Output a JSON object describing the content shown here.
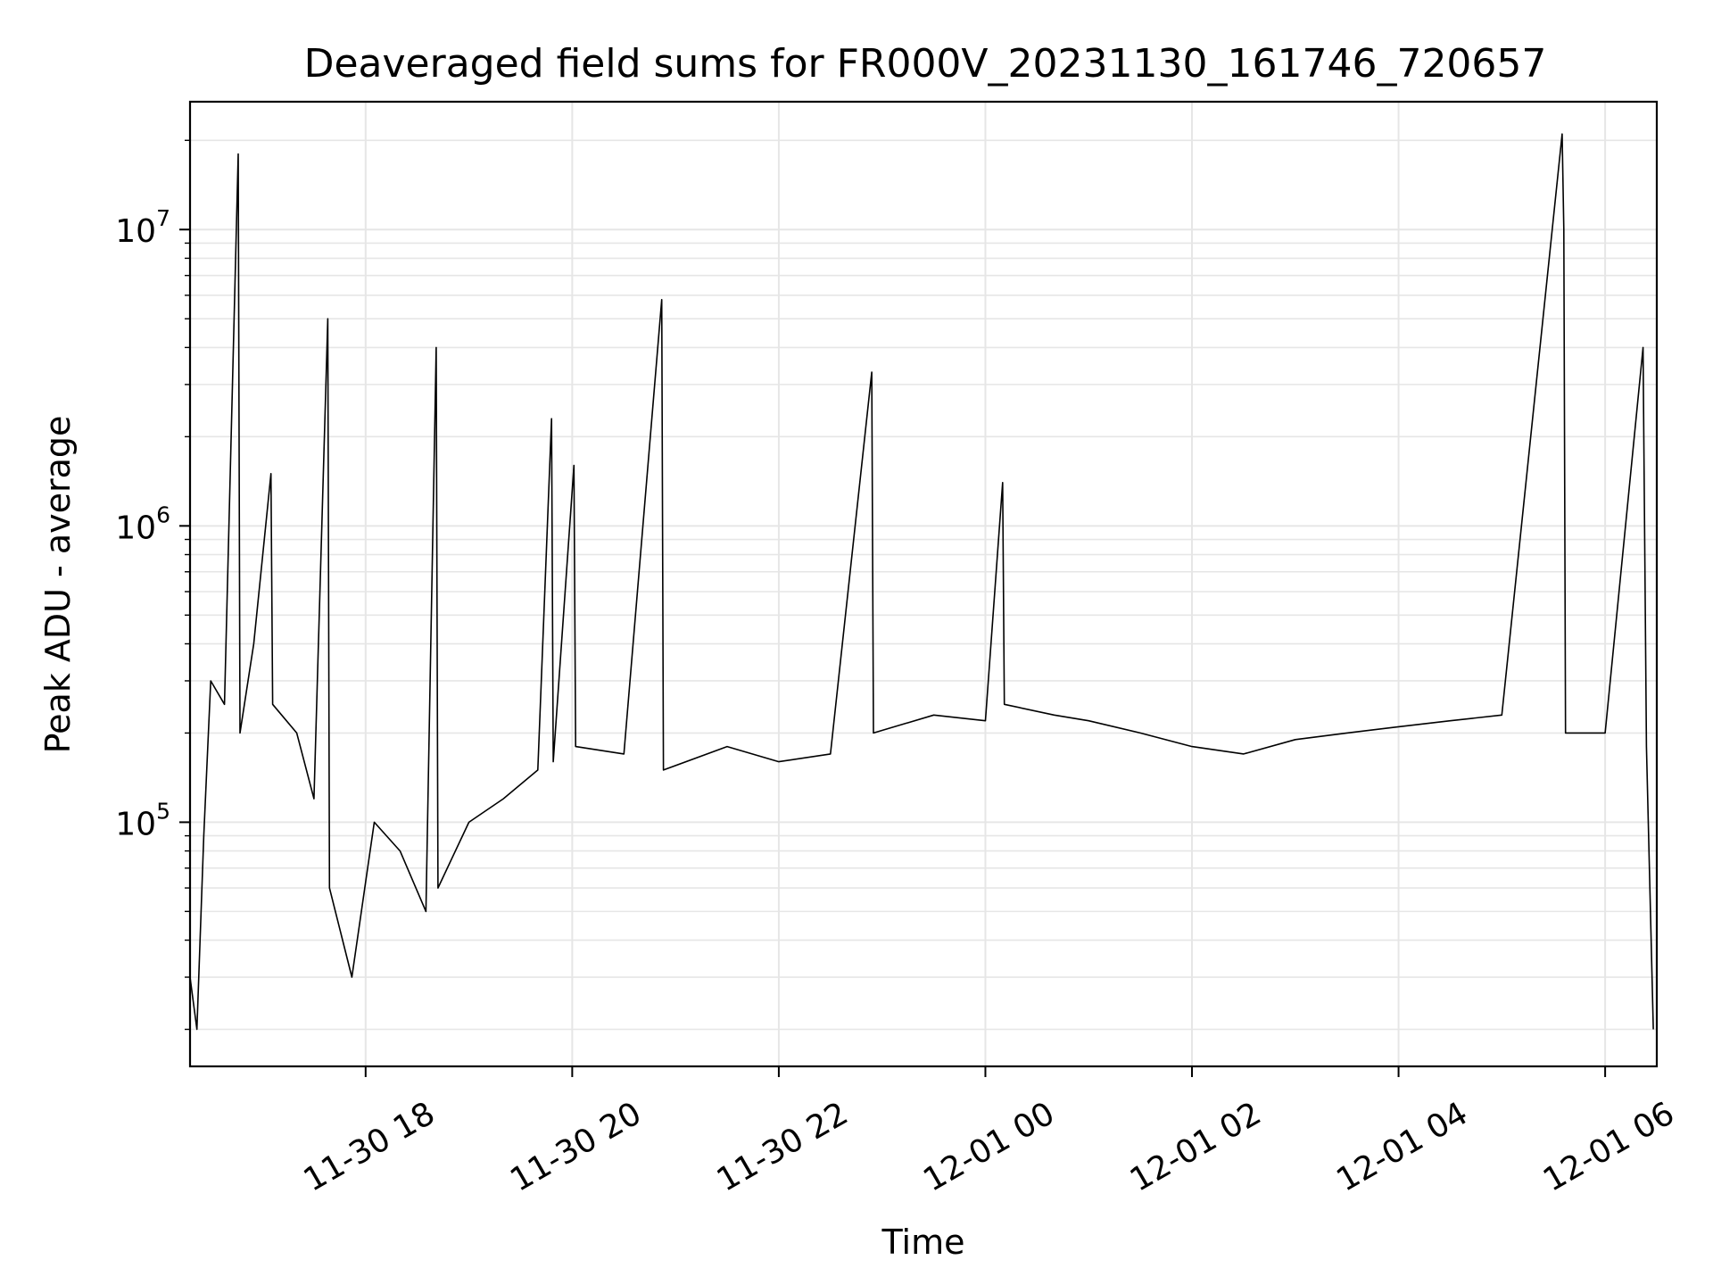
{
  "chart_data": {
    "type": "line",
    "title": "Deaveraged field sums for FR000V_20231130_161746_720657",
    "xlabel": "Time",
    "ylabel": "Peak ADU - average",
    "yscale": "log",
    "ylim": [
      15000,
      27000000
    ],
    "xlim": [
      "2023-11-30 16:18",
      "2023-12-01 06:30"
    ],
    "grid": true,
    "line_color": "#000000",
    "grid_color": "#e6e6e6",
    "x_ticks": [
      {
        "label": "11-30 18",
        "time": "2023-11-30 18:00"
      },
      {
        "label": "11-30 20",
        "time": "2023-11-30 20:00"
      },
      {
        "label": "11-30 22",
        "time": "2023-11-30 22:00"
      },
      {
        "label": "12-01 00",
        "time": "2023-12-01 00:00"
      },
      {
        "label": "12-01 02",
        "time": "2023-12-01 02:00"
      },
      {
        "label": "12-01 04",
        "time": "2023-12-01 04:00"
      },
      {
        "label": "12-01 06",
        "time": "2023-12-01 06:00"
      }
    ],
    "y_ticks": [
      {
        "base": "10",
        "exp": "5",
        "value": 100000
      },
      {
        "base": "10",
        "exp": "6",
        "value": 1000000
      },
      {
        "base": "10",
        "exp": "7",
        "value": 10000000
      }
    ],
    "series": [
      {
        "points": [
          [
            "2023-11-30 16:18",
            30000
          ],
          [
            "2023-11-30 16:22",
            20000
          ],
          [
            "2023-11-30 16:26",
            90000
          ],
          [
            "2023-11-30 16:30",
            300000
          ],
          [
            "2023-11-30 16:38",
            250000
          ],
          [
            "2023-11-30 16:46",
            18000000
          ],
          [
            "2023-11-30 16:47",
            200000
          ],
          [
            "2023-11-30 16:55",
            400000
          ],
          [
            "2023-11-30 17:05",
            1500000
          ],
          [
            "2023-11-30 17:06",
            250000
          ],
          [
            "2023-11-30 17:20",
            200000
          ],
          [
            "2023-11-30 17:30",
            120000
          ],
          [
            "2023-11-30 17:38",
            5000000
          ],
          [
            "2023-11-30 17:39",
            60000
          ],
          [
            "2023-11-30 17:52",
            30000
          ],
          [
            "2023-11-30 18:05",
            100000
          ],
          [
            "2023-11-30 18:20",
            80000
          ],
          [
            "2023-11-30 18:35",
            50000
          ],
          [
            "2023-11-30 18:41",
            4000000
          ],
          [
            "2023-11-30 18:42",
            60000
          ],
          [
            "2023-11-30 19:00",
            100000
          ],
          [
            "2023-11-30 19:20",
            120000
          ],
          [
            "2023-11-30 19:40",
            150000
          ],
          [
            "2023-11-30 19:48",
            2300000
          ],
          [
            "2023-11-30 19:49",
            160000
          ],
          [
            "2023-11-30 20:01",
            1600000
          ],
          [
            "2023-11-30 20:02",
            180000
          ],
          [
            "2023-11-30 20:30",
            170000
          ],
          [
            "2023-11-30 20:52",
            5800000
          ],
          [
            "2023-11-30 20:53",
            150000
          ],
          [
            "2023-11-30 21:30",
            180000
          ],
          [
            "2023-11-30 22:00",
            160000
          ],
          [
            "2023-11-30 22:30",
            170000
          ],
          [
            "2023-11-30 22:54",
            3300000
          ],
          [
            "2023-11-30 22:55",
            200000
          ],
          [
            "2023-11-30 23:30",
            230000
          ],
          [
            "2023-12-01 00:00",
            220000
          ],
          [
            "2023-12-01 00:10",
            1400000
          ],
          [
            "2023-12-01 00:11",
            250000
          ],
          [
            "2023-12-01 00:40",
            230000
          ],
          [
            "2023-12-01 01:00",
            220000
          ],
          [
            "2023-12-01 01:30",
            200000
          ],
          [
            "2023-12-01 02:00",
            180000
          ],
          [
            "2023-12-01 02:30",
            170000
          ],
          [
            "2023-12-01 03:00",
            190000
          ],
          [
            "2023-12-01 03:30",
            200000
          ],
          [
            "2023-12-01 04:00",
            210000
          ],
          [
            "2023-12-01 04:30",
            220000
          ],
          [
            "2023-12-01 05:00",
            230000
          ],
          [
            "2023-12-01 05:35",
            21000000
          ],
          [
            "2023-12-01 05:36",
            10000000
          ],
          [
            "2023-12-01 05:37",
            200000
          ],
          [
            "2023-12-01 06:00",
            200000
          ],
          [
            "2023-12-01 06:22",
            4000000
          ],
          [
            "2023-12-01 06:24",
            180000
          ],
          [
            "2023-12-01 06:28",
            20000
          ]
        ]
      }
    ]
  }
}
